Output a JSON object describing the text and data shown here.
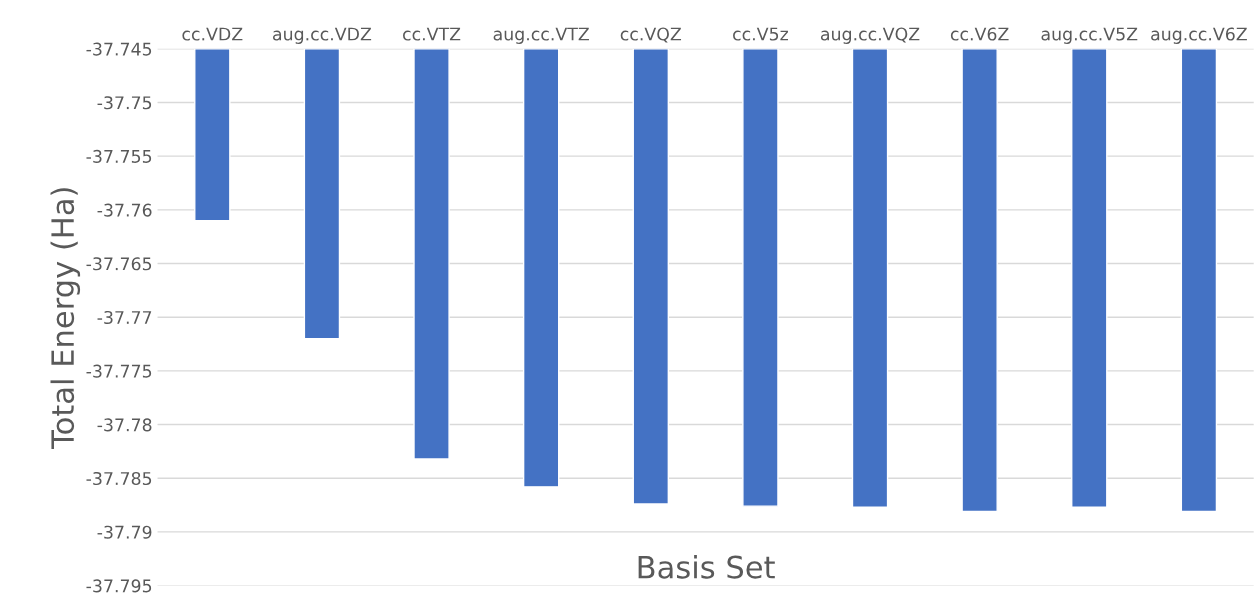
{
  "chart_data": {
    "type": "bar",
    "xlabel": "Basis Set",
    "ylabel": "Total Energy (Ha)",
    "categories": [
      "cc.VDZ",
      "aug.cc.VDZ",
      "cc.VTZ",
      "aug.cc.VTZ",
      "cc.VQZ",
      "cc.V5z",
      "aug.cc.VQZ",
      "cc.V6Z",
      "aug.cc.V5Z",
      "aug.cc.V6Z"
    ],
    "values": [
      -37.761,
      -37.772,
      -37.7832,
      -37.7858,
      -37.7874,
      -37.7876,
      -37.7877,
      -37.7881,
      -37.7877,
      -37.7881
    ],
    "color": "#4472c4",
    "ylim": [
      -37.795,
      -37.745
    ],
    "yticks": [
      -37.795,
      -37.79,
      -37.785,
      -37.78,
      -37.775,
      -37.77,
      -37.765,
      -37.76,
      -37.755,
      -37.75,
      -37.745
    ],
    "grid": "y"
  }
}
